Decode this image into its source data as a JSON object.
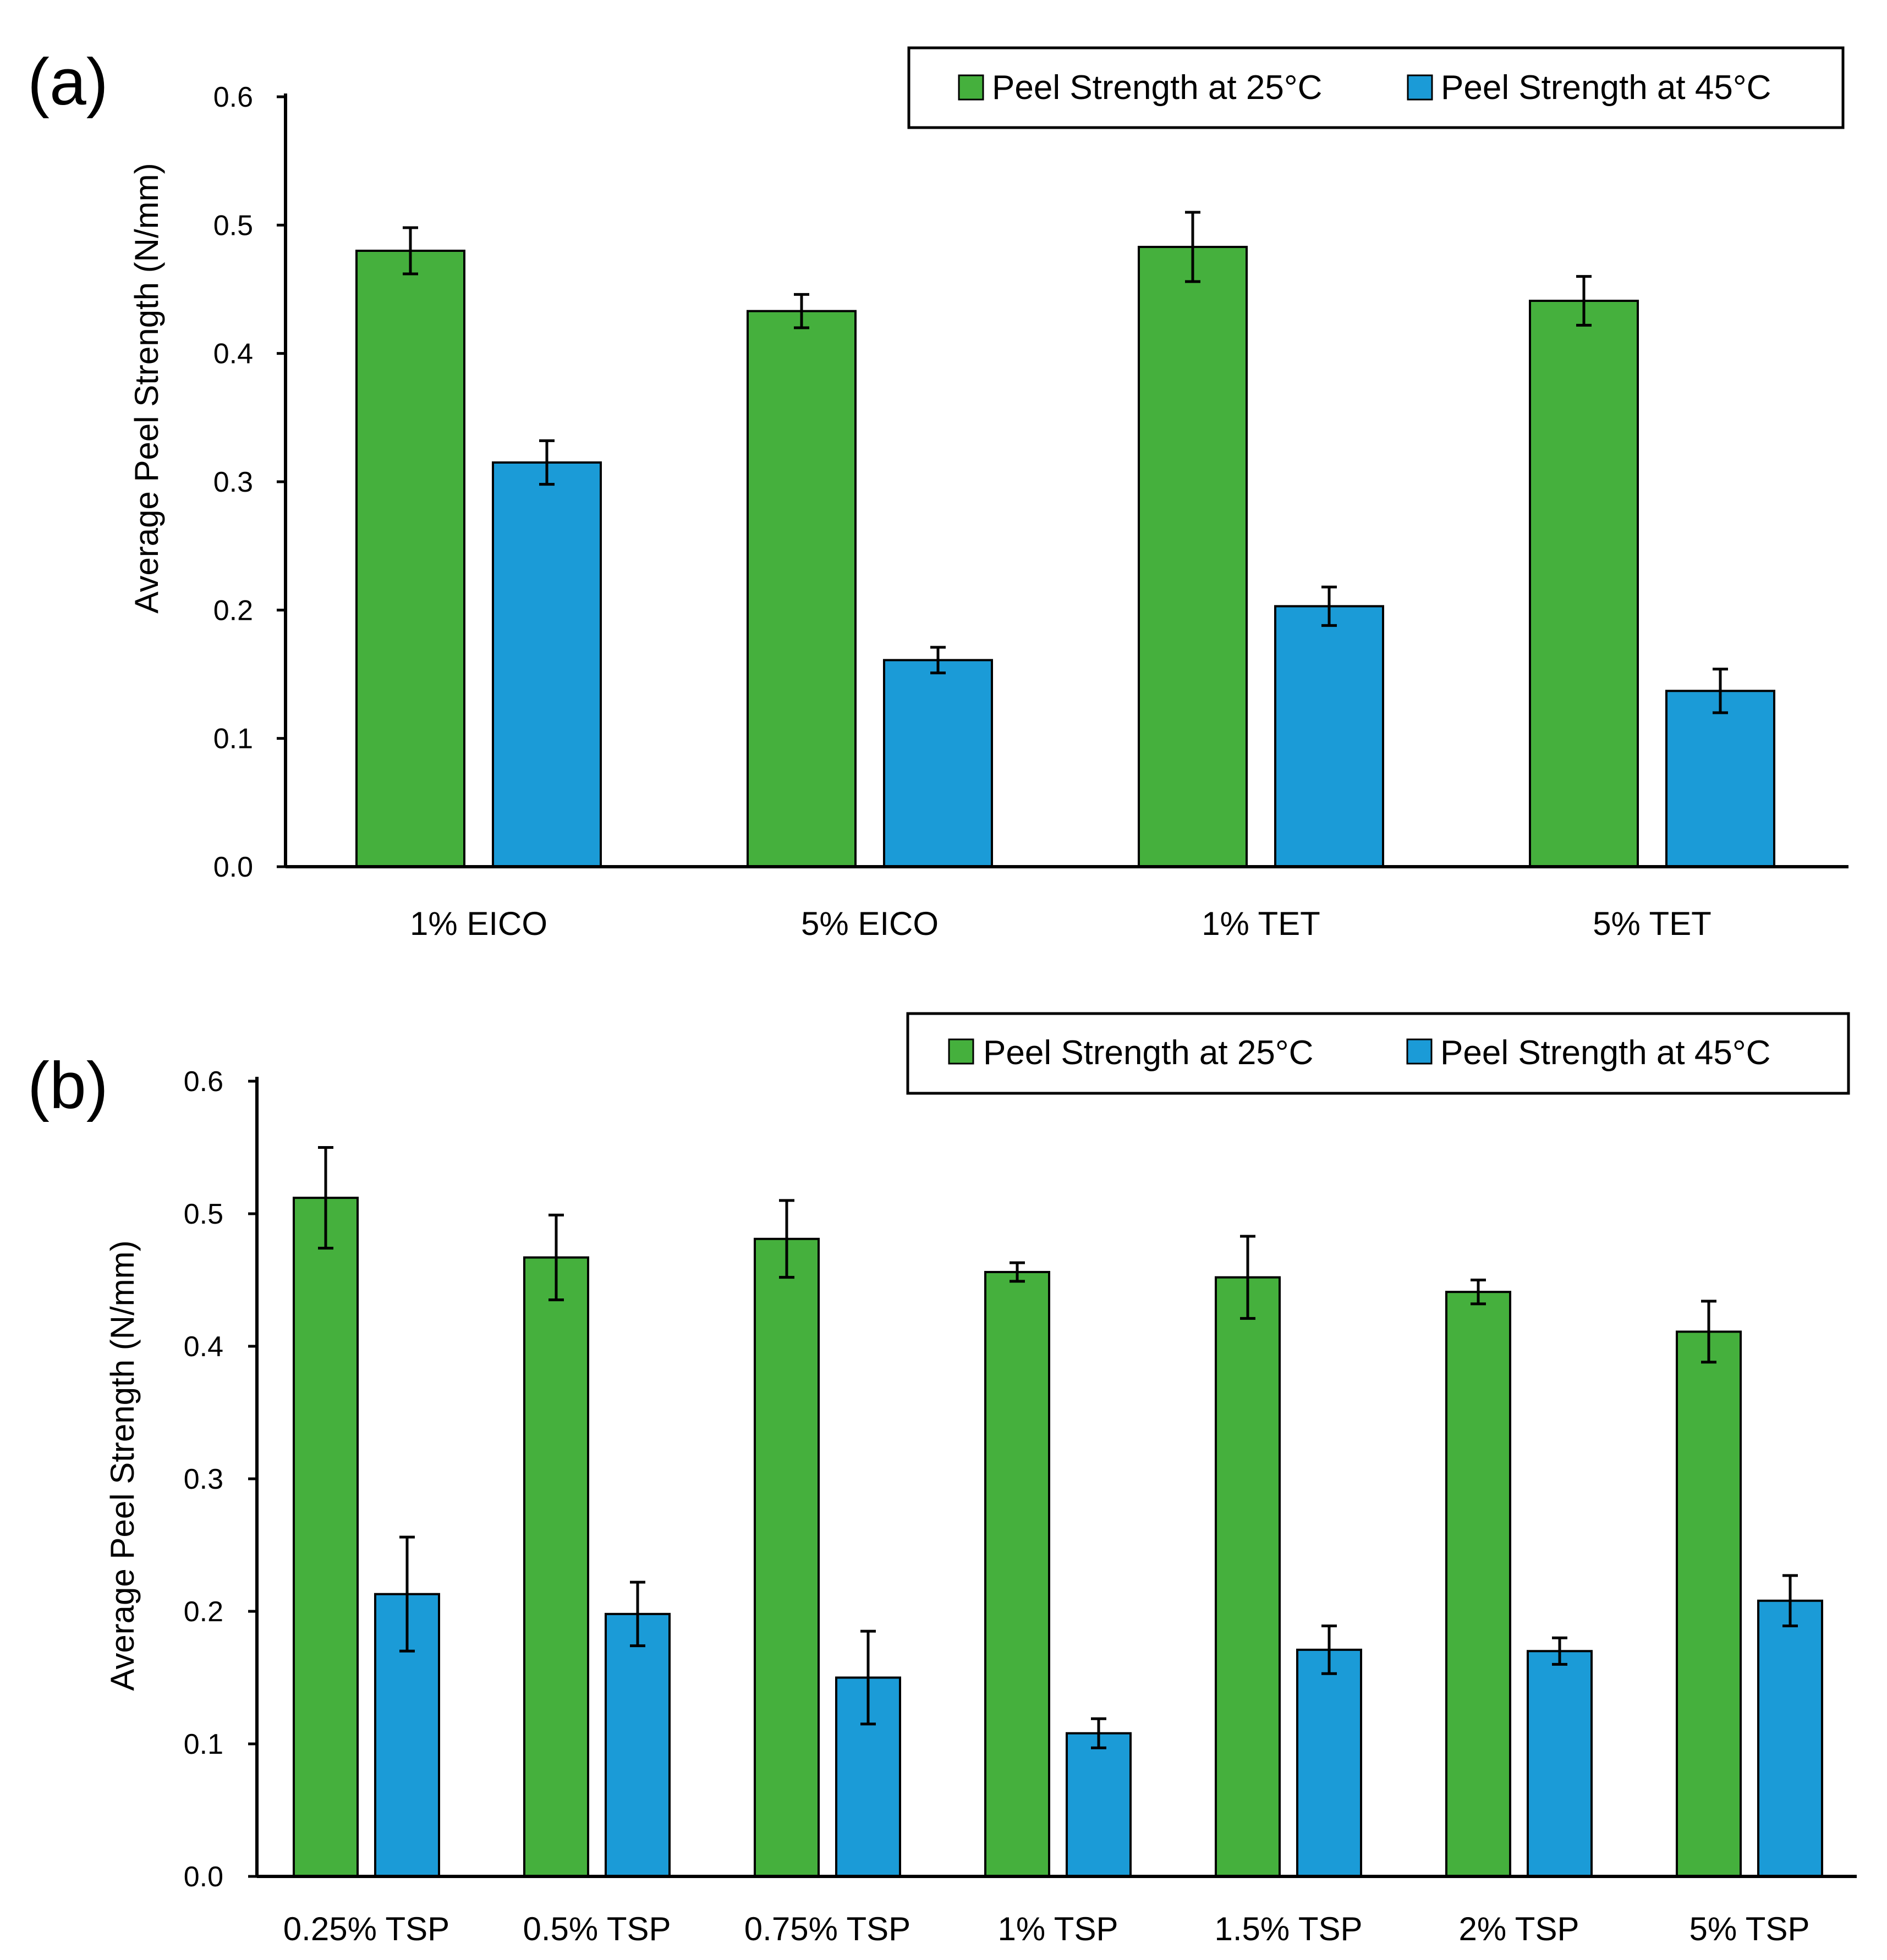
{
  "figure": {
    "colors": {
      "series_25C": "#45b03d",
      "series_45C": "#1b9bd7",
      "stroke": "#000000"
    }
  },
  "chart_data": [
    {
      "panel_label": "(a)",
      "type": "bar",
      "title": "",
      "xlabel": "",
      "ylabel": "Average Peel Strength (N/mm)",
      "ylim": [
        0,
        0.6
      ],
      "yticks": [
        "0.0",
        "0.1",
        "0.2",
        "0.3",
        "0.4",
        "0.5",
        "0.6"
      ],
      "grid": false,
      "legend_position": "top-right",
      "categories": [
        "1% EICO",
        "5% EICO",
        "1% TET",
        "5% TET"
      ],
      "series": [
        {
          "name": "Peel Strength at 25°C",
          "color": "#45b03d",
          "values": [
            0.48,
            0.433,
            0.483,
            0.441
          ],
          "errors": [
            0.018,
            0.013,
            0.027,
            0.019
          ]
        },
        {
          "name": "Peel Strength at 45°C",
          "color": "#1b9bd7",
          "values": [
            0.315,
            0.161,
            0.203,
            0.137
          ],
          "errors": [
            0.017,
            0.01,
            0.015,
            0.017
          ]
        }
      ]
    },
    {
      "panel_label": "(b)",
      "type": "bar",
      "title": "",
      "xlabel": "",
      "ylabel": "Average Peel Strength (N/mm)",
      "ylim": [
        0,
        0.6
      ],
      "yticks": [
        "0.0",
        "0.1",
        "0.2",
        "0.3",
        "0.4",
        "0.5",
        "0.6"
      ],
      "grid": false,
      "legend_position": "top-right",
      "categories": [
        "0.25% TSP",
        "0.5% TSP",
        "0.75% TSP",
        "1% TSP",
        "1.5% TSP",
        "2% TSP",
        "5% TSP"
      ],
      "series": [
        {
          "name": "Peel Strength at 25°C",
          "color": "#45b03d",
          "values": [
            0.512,
            0.467,
            0.481,
            0.456,
            0.452,
            0.441,
            0.411
          ],
          "errors": [
            0.038,
            0.032,
            0.029,
            0.007,
            0.031,
            0.009,
            0.023
          ]
        },
        {
          "name": "Peel Strength at 45°C",
          "color": "#1b9bd7",
          "values": [
            0.213,
            0.198,
            0.15,
            0.108,
            0.171,
            0.17,
            0.208
          ],
          "errors": [
            0.043,
            0.024,
            0.035,
            0.011,
            0.018,
            0.01,
            0.019
          ]
        }
      ]
    }
  ]
}
